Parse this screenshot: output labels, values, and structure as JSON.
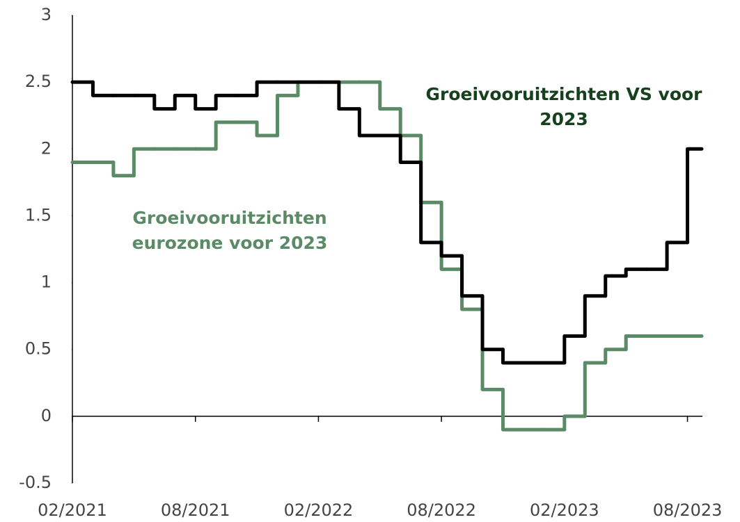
{
  "chart_data": {
    "type": "line",
    "step": true,
    "x": [
      "2021-02",
      "2021-03",
      "2021-04",
      "2021-05",
      "2021-06",
      "2021-07",
      "2021-08",
      "2021-09",
      "2021-10",
      "2021-11",
      "2021-12",
      "2022-01",
      "2022-02",
      "2022-03",
      "2022-04",
      "2022-05",
      "2022-06",
      "2022-07",
      "2022-08",
      "2022-09",
      "2022-10",
      "2022-11",
      "2022-12",
      "2023-01",
      "2023-02",
      "2023-03",
      "2023-04",
      "2023-05",
      "2023-06",
      "2023-07",
      "2023-08"
    ],
    "series": [
      {
        "name": "Groeivooruitzichten VS voor 2023",
        "color": "#000000",
        "values": [
          2.5,
          2.4,
          2.4,
          2.4,
          2.3,
          2.4,
          2.3,
          2.4,
          2.4,
          2.5,
          2.5,
          2.5,
          2.5,
          2.3,
          2.1,
          2.1,
          1.9,
          1.3,
          1.2,
          0.9,
          0.5,
          0.4,
          0.4,
          0.4,
          0.6,
          0.9,
          1.05,
          1.1,
          1.1,
          1.3,
          2.0
        ]
      },
      {
        "name": "Groeivooruitzichten eurozone voor 2023",
        "color": "#5b8a66",
        "values": [
          1.9,
          1.9,
          1.8,
          2.0,
          2.0,
          2.0,
          2.0,
          2.2,
          2.2,
          2.1,
          2.4,
          2.5,
          2.5,
          2.5,
          2.5,
          2.3,
          2.1,
          1.6,
          1.1,
          0.8,
          0.2,
          -0.1,
          -0.1,
          -0.1,
          0.0,
          0.4,
          0.5,
          0.6,
          0.6,
          0.6,
          0.6
        ]
      }
    ],
    "annotations": [
      {
        "text": "Groeivooruitzichten VS voor 2023",
        "color": "#17401f"
      },
      {
        "text": "Groeivooruitzichten eurozone voor 2023",
        "color": "#5b8a66"
      }
    ],
    "xlim": [
      "2021-02",
      "2023-09"
    ],
    "xticks": [
      {
        "value": "2021-02",
        "label": "02/2021"
      },
      {
        "value": "2021-08",
        "label": "08/2021"
      },
      {
        "value": "2022-02",
        "label": "02/2022"
      },
      {
        "value": "2022-08",
        "label": "08/2022"
      },
      {
        "value": "2023-02",
        "label": "02/2023"
      },
      {
        "value": "2023-08",
        "label": "08/2023"
      }
    ],
    "ylim": [
      -0.5,
      3
    ],
    "yticks": [
      3,
      2.5,
      2,
      1.5,
      1,
      0.5,
      0,
      -0.5
    ],
    "grid": false
  }
}
